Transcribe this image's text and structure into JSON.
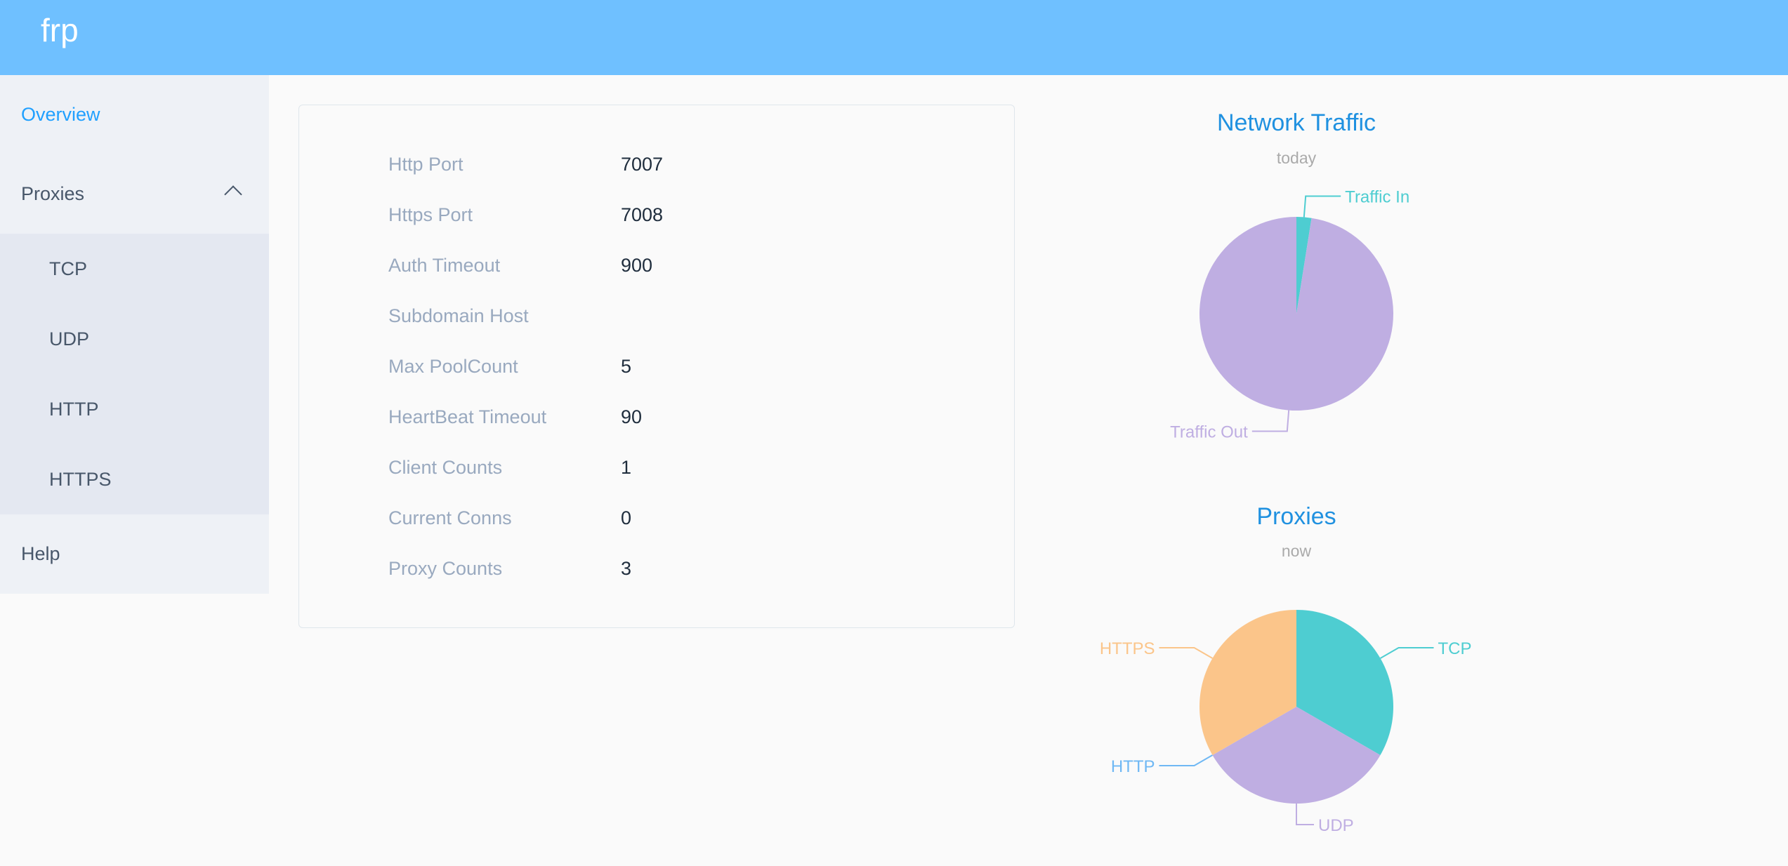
{
  "header": {
    "title": "frp"
  },
  "sidebar": {
    "overview": "Overview",
    "proxies": "Proxies",
    "sub": [
      "TCP",
      "UDP",
      "HTTP",
      "HTTPS"
    ],
    "help": "Help"
  },
  "info": [
    {
      "label": "Http Port",
      "value": "7007"
    },
    {
      "label": "Https Port",
      "value": "7008"
    },
    {
      "label": "Auth Timeout",
      "value": "900"
    },
    {
      "label": "Subdomain Host",
      "value": ""
    },
    {
      "label": "Max PoolCount",
      "value": "5"
    },
    {
      "label": "HeartBeat Timeout",
      "value": "90"
    },
    {
      "label": "Client Counts",
      "value": "1"
    },
    {
      "label": "Current Conns",
      "value": "0"
    },
    {
      "label": "Proxy Counts",
      "value": "3"
    }
  ],
  "chart_data": [
    {
      "type": "pie",
      "title": "Network Traffic",
      "subtitle": "today",
      "series": [
        {
          "name": "Traffic In",
          "value": 2.5,
          "color": "#4ecdd1"
        },
        {
          "name": "Traffic Out",
          "value": 97.5,
          "color": "#bfaee2"
        }
      ]
    },
    {
      "type": "pie",
      "title": "Proxies",
      "subtitle": "now",
      "series": [
        {
          "name": "TCP",
          "value": 1,
          "color": "#4ecdd1"
        },
        {
          "name": "UDP",
          "value": 1,
          "color": "#bfaee2"
        },
        {
          "name": "HTTP",
          "value": 0,
          "color": "#6fb8f4"
        },
        {
          "name": "HTTPS",
          "value": 1,
          "color": "#fbc58a"
        }
      ]
    }
  ]
}
